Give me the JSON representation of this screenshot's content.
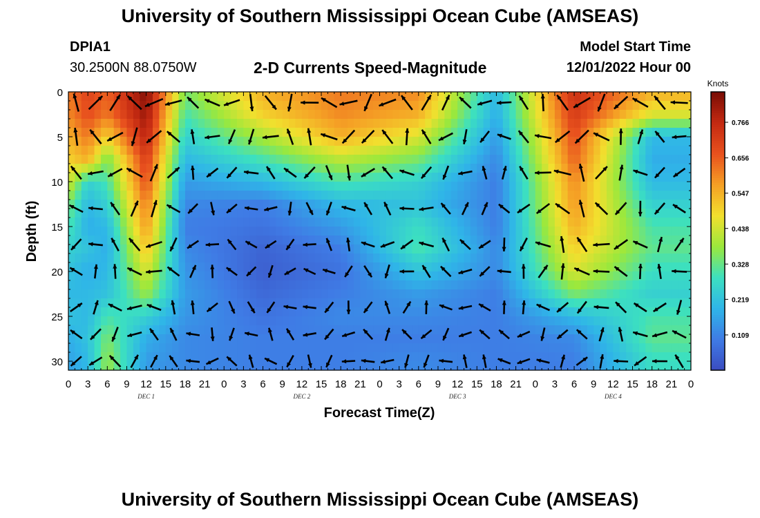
{
  "header": {
    "title": "University of Southern Mississippi Ocean Cube (AMSEAS)",
    "station_id": "DPIA1",
    "station_coords": "30.2500N  88.0750W",
    "plot_title": "2-D Currents Speed-Magnitude",
    "model_start_label": "Model Start Time",
    "model_start_value": "12/01/2022 Hour 00"
  },
  "footer": {
    "title": "University of Southern Mississippi Ocean Cube (AMSEAS)"
  },
  "chart_data": {
    "type": "heatmap",
    "title": "2-D Currents Speed-Magnitude",
    "xlabel": "Forecast Time(Z)",
    "ylabel": "Depth (ft)",
    "x_tick_labels": [
      "0",
      "3",
      "6",
      "9",
      "12",
      "15",
      "18",
      "21",
      "0",
      "3",
      "6",
      "9",
      "12",
      "15",
      "18",
      "21",
      "0",
      "3",
      "6",
      "9",
      "12",
      "15",
      "18",
      "21",
      "0",
      "3",
      "6",
      "9",
      "12",
      "15",
      "18",
      "21",
      "0"
    ],
    "day_labels": [
      "DEC 1",
      "DEC 2",
      "DEC 3",
      "DEC 4"
    ],
    "y_ticks": [
      0,
      5,
      10,
      15,
      20,
      25,
      30
    ],
    "ylim": [
      0,
      31
    ],
    "xlim_hours": [
      0,
      96
    ],
    "colorbar": {
      "unit": "Knots",
      "ticks": [
        "0.766",
        "0.656",
        "0.547",
        "0.438",
        "0.328",
        "0.219",
        "0.109"
      ],
      "range": [
        0,
        0.86
      ],
      "colors": [
        "#3b4cc0",
        "#3f7be5",
        "#2fb5e8",
        "#3ce0c0",
        "#9be83c",
        "#f2e02e",
        "#f5a025",
        "#e8511e",
        "#c42a12",
        "#7a0d04"
      ]
    },
    "speed_field": {
      "note": "approximate speed (knots) per time column (3-hourly) per depth row",
      "depth_rows_ft": [
        0,
        2.5,
        5,
        7.5,
        10,
        12.5,
        15,
        17.5,
        20,
        22.5,
        25,
        27.5,
        30
      ],
      "profiles": {
        "h0": [
          0.62,
          0.6,
          0.55,
          0.5,
          0.45,
          0.35,
          0.3,
          0.25,
          0.22,
          0.2,
          0.22,
          0.18,
          0.16
        ],
        "h3": [
          0.7,
          0.68,
          0.62,
          0.55,
          0.25,
          0.2,
          0.18,
          0.22,
          0.18,
          0.2,
          0.2,
          0.22,
          0.2
        ],
        "h6": [
          0.65,
          0.62,
          0.5,
          0.35,
          0.3,
          0.25,
          0.2,
          0.18,
          0.2,
          0.22,
          0.3,
          0.35,
          0.38
        ],
        "h12": [
          0.85,
          0.82,
          0.78,
          0.72,
          0.68,
          0.62,
          0.58,
          0.52,
          0.45,
          0.38,
          0.25,
          0.18,
          0.15
        ],
        "h18": [
          0.35,
          0.3,
          0.25,
          0.2,
          0.15,
          0.12,
          0.1,
          0.12,
          0.14,
          0.15,
          0.14,
          0.12,
          0.12
        ],
        "h30": [
          0.55,
          0.5,
          0.4,
          0.3,
          0.2,
          0.1,
          0.08,
          0.05,
          0.04,
          0.06,
          0.08,
          0.1,
          0.1
        ],
        "h42": [
          0.62,
          0.6,
          0.55,
          0.42,
          0.3,
          0.2,
          0.15,
          0.1,
          0.08,
          0.1,
          0.12,
          0.1,
          0.1
        ],
        "h54": [
          0.6,
          0.55,
          0.45,
          0.35,
          0.25,
          0.22,
          0.28,
          0.3,
          0.22,
          0.15,
          0.12,
          0.1,
          0.12
        ],
        "h66": [
          0.2,
          0.18,
          0.15,
          0.12,
          0.1,
          0.1,
          0.1,
          0.12,
          0.12,
          0.1,
          0.1,
          0.1,
          0.1
        ],
        "h78": [
          0.75,
          0.72,
          0.68,
          0.65,
          0.6,
          0.58,
          0.55,
          0.5,
          0.45,
          0.35,
          0.2,
          0.12,
          0.1
        ],
        "h90": [
          0.55,
          0.45,
          0.2,
          0.18,
          0.2,
          0.25,
          0.3,
          0.32,
          0.28,
          0.25,
          0.3,
          0.32,
          0.28
        ]
      }
    }
  }
}
